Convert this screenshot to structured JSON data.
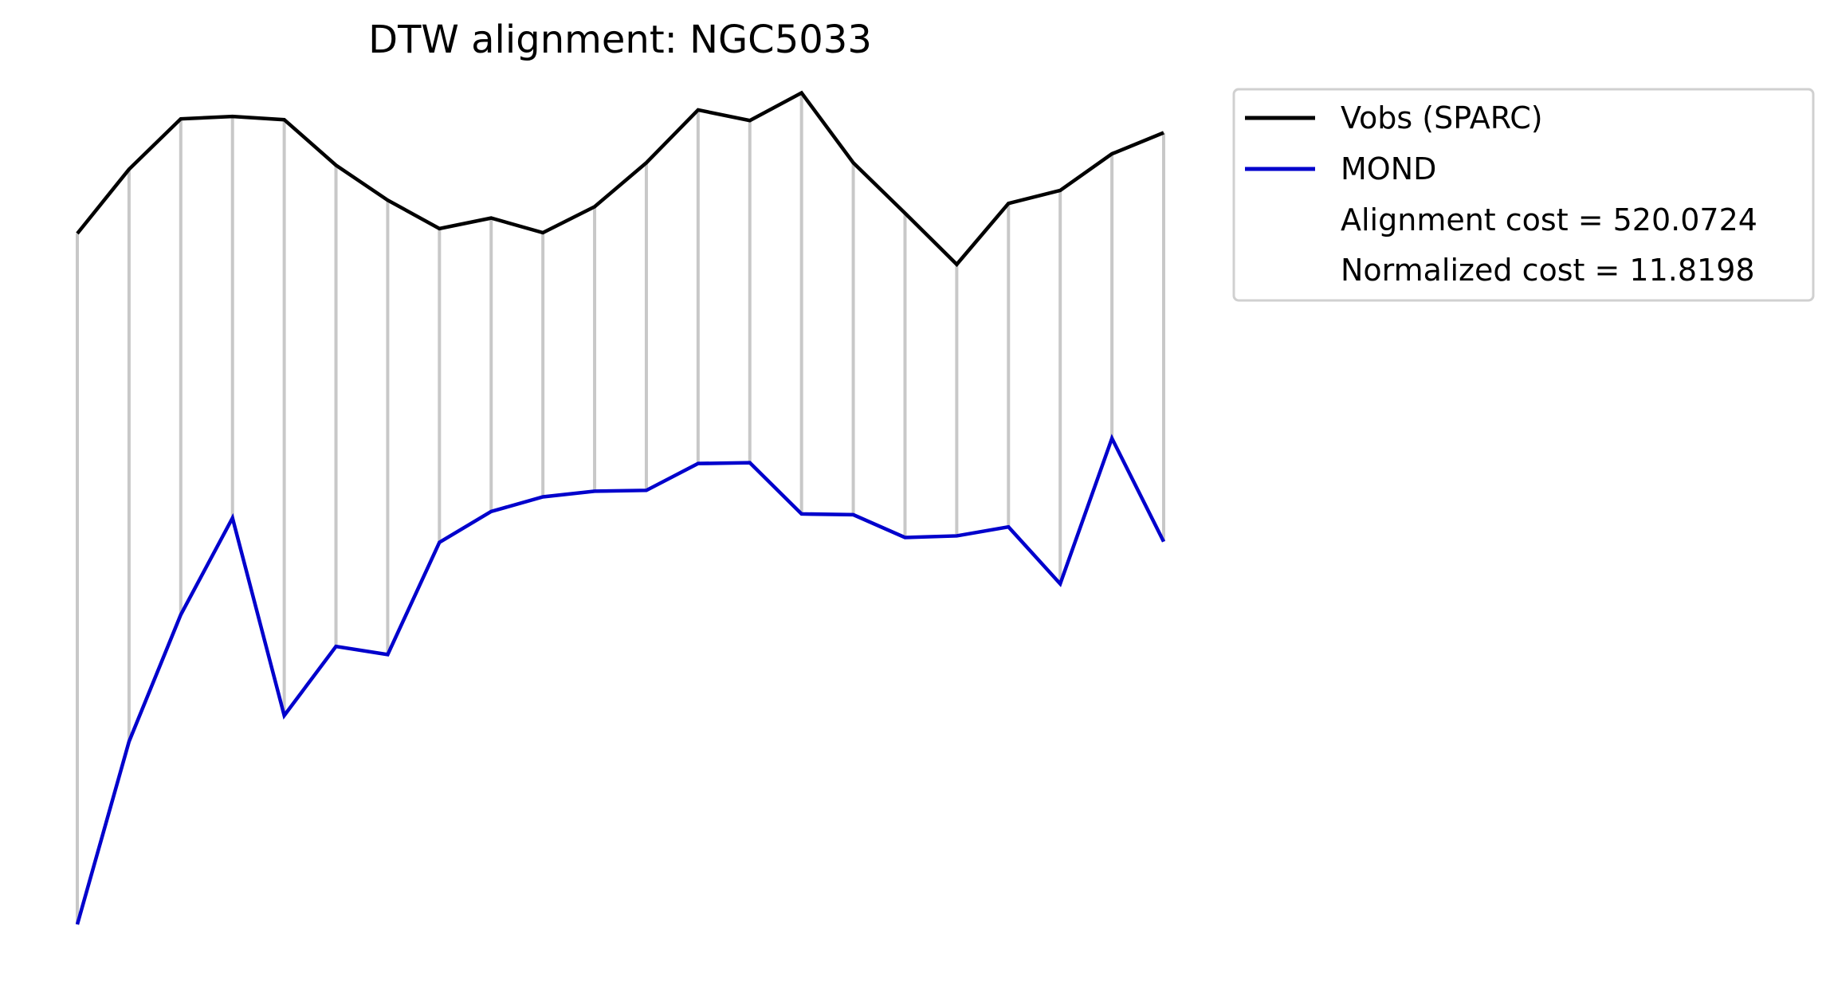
{
  "chart_data": {
    "type": "line",
    "title": "DTW alignment: NGC5033",
    "xlabel": "",
    "ylabel": "",
    "axes_visible": false,
    "grid": false,
    "legend_position": "upper-right-outside",
    "x": [
      0,
      1,
      2,
      3,
      4,
      5,
      6,
      7,
      8,
      9,
      10,
      11,
      12,
      13,
      14,
      15,
      16,
      17,
      18,
      19,
      20,
      21
    ],
    "ylim": [
      0,
      1
    ],
    "series": [
      {
        "name": "Vobs (SPARC)",
        "color": "#000000",
        "values": [
          0.85,
          0.929,
          0.991,
          0.994,
          0.99,
          0.934,
          0.891,
          0.856,
          0.869,
          0.851,
          0.883,
          0.937,
          1.002,
          0.989,
          1.023,
          0.937,
          0.875,
          0.812,
          0.887,
          0.903,
          0.948,
          0.974
        ]
      },
      {
        "name": "MOND",
        "color": "#0000cc",
        "values": [
          0.0,
          0.225,
          0.381,
          0.5,
          0.257,
          0.342,
          0.332,
          0.47,
          0.508,
          0.526,
          0.533,
          0.534,
          0.567,
          0.568,
          0.505,
          0.504,
          0.476,
          0.478,
          0.489,
          0.419,
          0.598,
          0.471
        ]
      }
    ],
    "alignment_path": [
      [
        0,
        0
      ],
      [
        1,
        1
      ],
      [
        2,
        2
      ],
      [
        3,
        3
      ],
      [
        4,
        4
      ],
      [
        5,
        5
      ],
      [
        6,
        6
      ],
      [
        7,
        7
      ],
      [
        8,
        8
      ],
      [
        9,
        9
      ],
      [
        10,
        10
      ],
      [
        11,
        11
      ],
      [
        12,
        12
      ],
      [
        13,
        13
      ],
      [
        14,
        14
      ],
      [
        15,
        15
      ],
      [
        16,
        16
      ],
      [
        17,
        17
      ],
      [
        18,
        18
      ],
      [
        19,
        19
      ],
      [
        20,
        20
      ],
      [
        21,
        21
      ]
    ],
    "legend_extra": [
      "Alignment cost = 520.0724",
      "Normalized cost = 11.8198"
    ],
    "connector_color": "#c8c8c8"
  }
}
